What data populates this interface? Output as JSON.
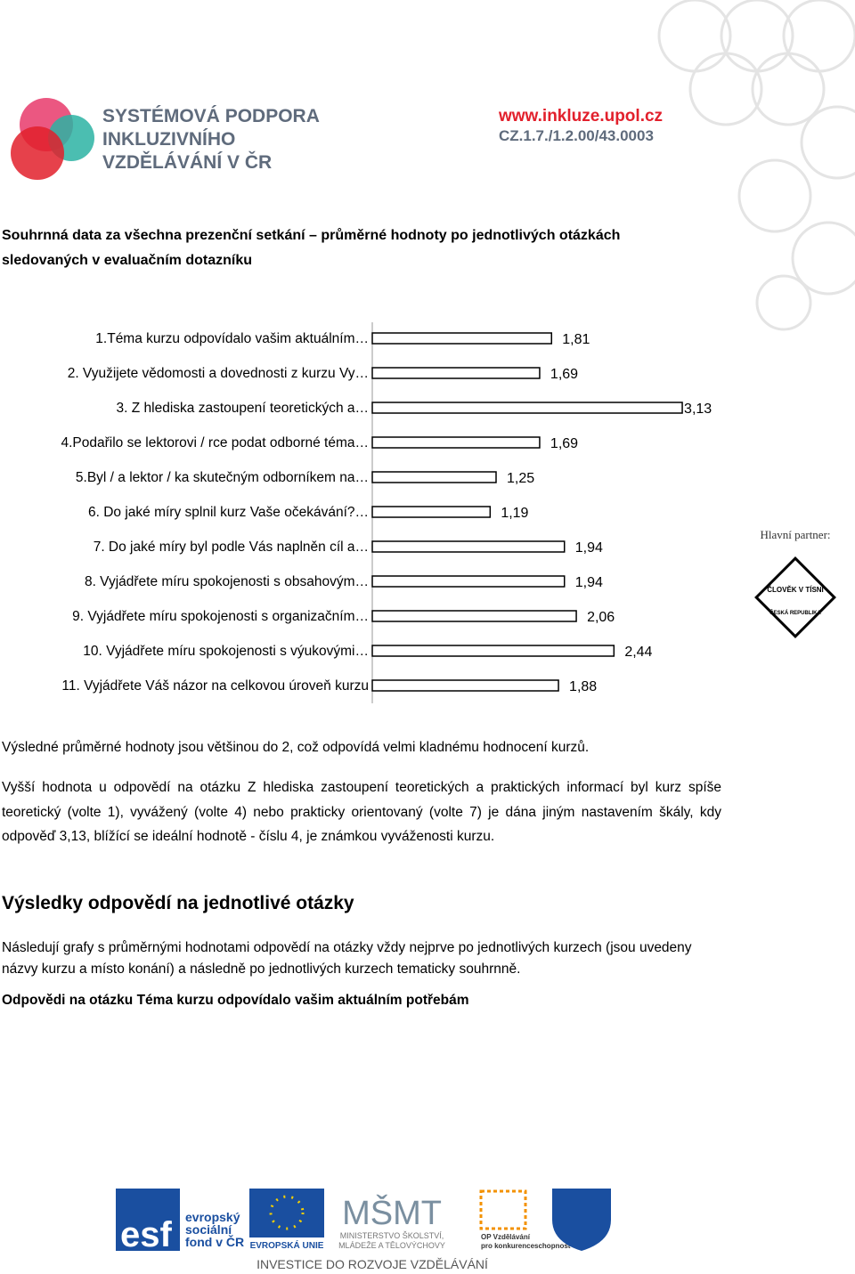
{
  "header": {
    "logo_lines": [
      "SYSTÉMOVÁ PODPORA",
      "INKLUZIVNÍHO",
      "VZDĚLÁVÁNÍ V ČR"
    ],
    "url": "www.inkluze.upol.cz",
    "code": "CZ.1.7./1.2.00/43.0003"
  },
  "heading": "Souhrnná data za všechna prezenční setkání – průměrné hodnoty po jednotlivých otázkách sledovaných v evaluačním dotazníku",
  "chart_data": {
    "type": "bar",
    "orientation": "horizontal",
    "color": "#ffffff",
    "categories": [
      "1.Téma kurzu odpovídalo vašim aktuálním…",
      "2. Využijete vědomosti a dovednosti z kurzu Vy…",
      "3. Z hlediska zastoupení teoretických a…",
      "4.Podařilo se lektorovi / rce podat odborné téma…",
      "5.Byl / a lektor / ka skutečným odborníkem na…",
      "6. Do jaké míry splnil kurz Vaše očekávání?…",
      "7. Do jaké míry byl podle Vás naplněn cíl a…",
      "8. Vyjádřete míru spokojenosti s obsahovým…",
      "9. Vyjádřete míru spokojenosti s organizačním…",
      "10. Vyjádřete míru spokojenosti s výukovými…",
      "11. Vyjádřete Váš názor na celkovou úroveň kurzu"
    ],
    "values": [
      1.81,
      1.69,
      3.13,
      1.69,
      1.25,
      1.19,
      1.94,
      1.94,
      2.06,
      2.44,
      1.88
    ],
    "value_labels": [
      "1,81",
      "1,69",
      "3,13",
      "1,69",
      "1,25",
      "1,19",
      "1,94",
      "1,94",
      "2,06",
      "2,44",
      "1,88"
    ]
  },
  "partner": {
    "label": "Hlavní partner:",
    "logo_top": "ČLOVĚK V TÍSNI",
    "logo_bottom": "ČESKÁ REPUBLIKA"
  },
  "paragraphs": [
    "Výsledné průměrné hodnoty jsou většinou do 2, což odpovídá velmi kladnému hodnocení kurzů.",
    "Vyšší hodnota u odpovědí na otázku Z hlediska zastoupení teoretických a praktických informací byl kurz spíše teoretický (volte 1), vyvážený (volte 4) nebo prakticky orientovaný (volte 7) je dána jiným nastavením škály, kdy odpověď 3,13, blížící se ideální hodnotě - číslu 4, je známkou vyváženosti kurzu."
  ],
  "section_title": "Výsledky odpovědí na jednotlivé otázky",
  "section_text": "Následují grafy s průměrnými hodnotami odpovědí na otázky vždy nejprve po jednotlivých kurzech (jsou uvedeny názvy kurzu a místo konání) a následně po jednotlivých kurzech tematicky souhrnně.",
  "subheading": "Odpovědi na otázku Téma kurzu odpovídalo vašim aktuálním potřebám",
  "footer": {
    "esf": "esf",
    "esf_text": [
      "evropský",
      "sociální",
      "fond v ČR"
    ],
    "eu": "EVROPSKÁ UNIE",
    "msmt": "MŠMT",
    "msmt_text": [
      "MINISTERSTVO ŠKOLSTVÍ,",
      "MLÁDEŽE A TĚLOVÝCHOVY"
    ],
    "op": [
      "OP Vzdělávání",
      "pro konkurenceschopnost"
    ],
    "slogan": "INVESTICE DO ROZVOJE VZDĚLÁVÁNÍ"
  }
}
